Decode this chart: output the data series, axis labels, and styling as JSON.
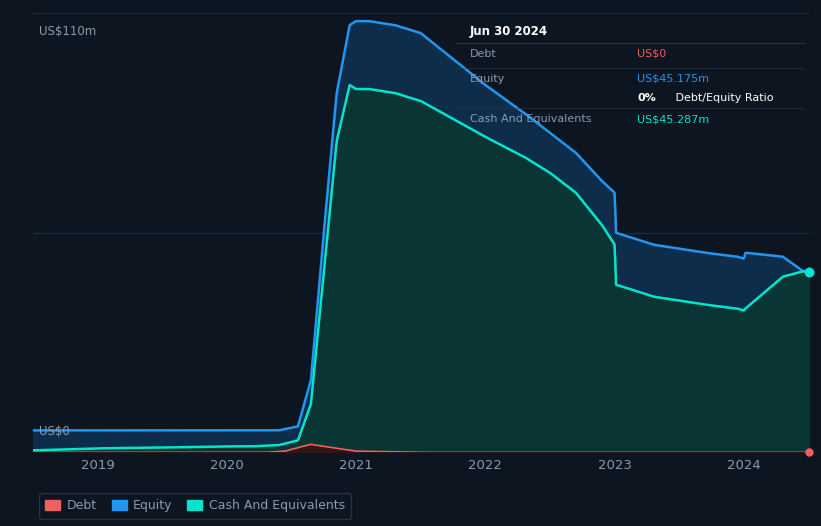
{
  "background_color": "#0d1520",
  "plot_bg_color": "#0d1520",
  "grid_color": "#1a2535",
  "ylabel_text": "US$110m",
  "y0_text": "US$0",
  "x_ticks": [
    2019,
    2020,
    2021,
    2022,
    2023,
    2024
  ],
  "ylim": [
    0,
    110
  ],
  "equity_color": "#2196f3",
  "equity_fill_color": "#0d2d4a",
  "cash_color": "#00e5cc",
  "cash_fill_color": "#0a3535",
  "debt_color": "#f06060",
  "legend_items": [
    {
      "label": "Debt",
      "color": "#f06060"
    },
    {
      "label": "Equity",
      "color": "#2196f3"
    },
    {
      "label": "Cash And Equivalents",
      "color": "#00e5cc"
    }
  ],
  "tooltip": {
    "date": "Jun 30 2024",
    "bg_color": "#080d14",
    "border_color": "#2a3a4a",
    "text_color": "#8a9ab0"
  },
  "equity_data": {
    "x": [
      2018.5,
      2018.8,
      2019.0,
      2019.5,
      2020.0,
      2020.2,
      2020.4,
      2020.55,
      2020.65,
      2020.75,
      2020.85,
      2020.95,
      2021.0,
      2021.1,
      2021.3,
      2021.5,
      2022.0,
      2022.3,
      2022.5,
      2022.7,
      2022.9,
      2023.0,
      2023.01,
      2023.3,
      2023.5,
      2023.7,
      2023.95,
      2024.0,
      2024.01,
      2024.3,
      2024.45,
      2024.5
    ],
    "y": [
      5.5,
      5.5,
      5.5,
      5.5,
      5.5,
      5.5,
      5.5,
      6.5,
      18,
      55,
      90,
      107,
      108,
      108,
      107,
      105,
      92,
      85,
      80,
      75,
      68,
      65,
      55,
      52,
      51,
      50,
      49,
      48.5,
      50,
      49,
      45.5,
      45.175
    ]
  },
  "cash_data": {
    "x": [
      2018.5,
      2018.8,
      2019.0,
      2019.5,
      2020.0,
      2020.2,
      2020.4,
      2020.55,
      2020.65,
      2020.75,
      2020.85,
      2020.95,
      2021.0,
      2021.1,
      2021.3,
      2021.5,
      2022.0,
      2022.3,
      2022.5,
      2022.7,
      2022.9,
      2023.0,
      2023.01,
      2023.3,
      2023.5,
      2023.7,
      2023.95,
      2024.0,
      2024.01,
      2024.3,
      2024.45,
      2024.5
    ],
    "y": [
      0.5,
      0.8,
      1.0,
      1.2,
      1.5,
      1.5,
      1.8,
      3,
      12,
      45,
      78,
      92,
      91,
      91,
      90,
      88,
      79,
      74,
      70,
      65,
      57,
      52,
      42,
      39,
      38,
      37,
      36,
      35.5,
      36,
      44,
      45.3,
      45.287
    ]
  },
  "debt_data": {
    "x": [
      2018.5,
      2019.0,
      2019.5,
      2020.0,
      2020.3,
      2020.45,
      2020.55,
      2020.65,
      2020.75,
      2021.0,
      2021.5,
      2022.0,
      2022.5,
      2023.0,
      2024.0,
      2024.5
    ],
    "y": [
      0,
      0,
      0,
      0,
      0,
      0.3,
      1.2,
      2.0,
      1.5,
      0.3,
      0,
      0,
      0,
      0,
      0,
      0
    ]
  }
}
